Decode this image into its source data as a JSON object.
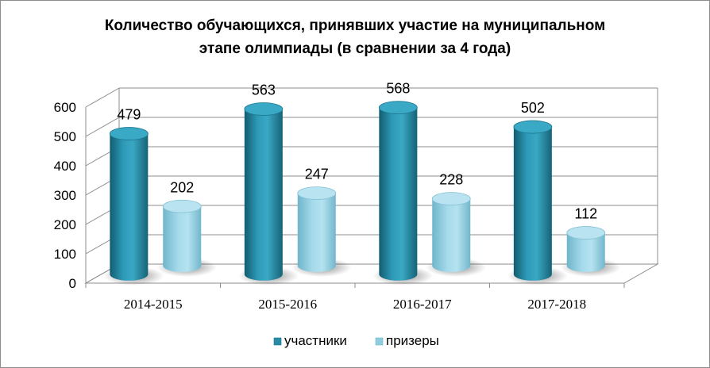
{
  "chart_data": {
    "type": "bar",
    "title": "Количество обучающихся, принявших участие на муниципальном",
    "title_line2": "этапе олимпиады  (в сравнении за 4 года)",
    "categories": [
      "2014-2015",
      "2015-2016",
      "2016-2017",
      "2017-2018"
    ],
    "series": [
      {
        "name": "участники",
        "values": [
          479,
          563,
          568,
          502
        ],
        "color": "#2a8ba6"
      },
      {
        "name": "призеры",
        "values": [
          202,
          247,
          228,
          112
        ],
        "color": "#8ecde0"
      }
    ],
    "ylim": [
      0,
      600
    ],
    "yticks": [
      "0",
      "100",
      "200",
      "300",
      "400",
      "500",
      "600"
    ],
    "grid": true,
    "legend": "bottom",
    "style": "3d-cylinder"
  }
}
